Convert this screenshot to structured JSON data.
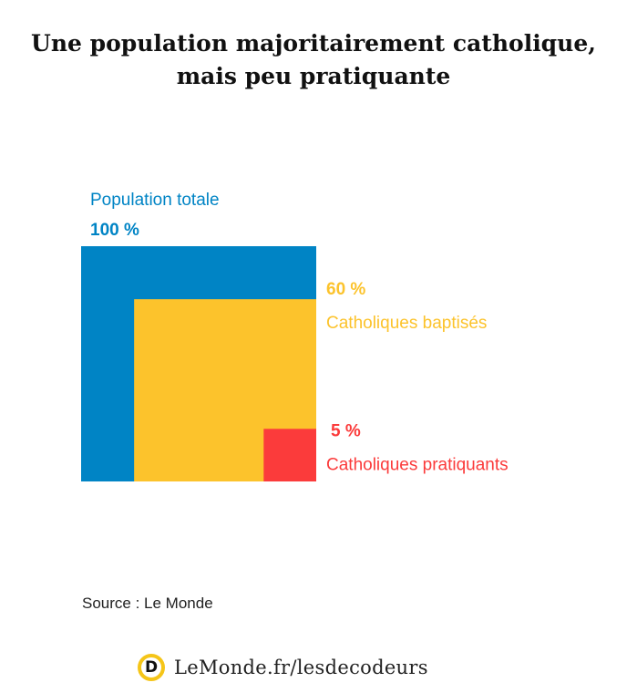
{
  "title": {
    "line1": "Une population majoritairement catholique,",
    "line2": "mais peu pratiquante"
  },
  "chart_data": {
    "type": "nested-squares",
    "items": [
      {
        "label": "Population totale",
        "value": 100,
        "value_label": "100 %",
        "color": "#0084c5"
      },
      {
        "label": "Catholiques baptisés",
        "value": 60,
        "value_label": "60 %",
        "color": "#fcc32c"
      },
      {
        "label": "Catholiques pratiquants",
        "value": 5,
        "value_label": "5 %",
        "color": "#fb3b3b"
      }
    ]
  },
  "source": "Source : Le Monde",
  "footer": {
    "logo_letter": "D",
    "url": "LeMonde.fr/lesdecodeurs"
  }
}
